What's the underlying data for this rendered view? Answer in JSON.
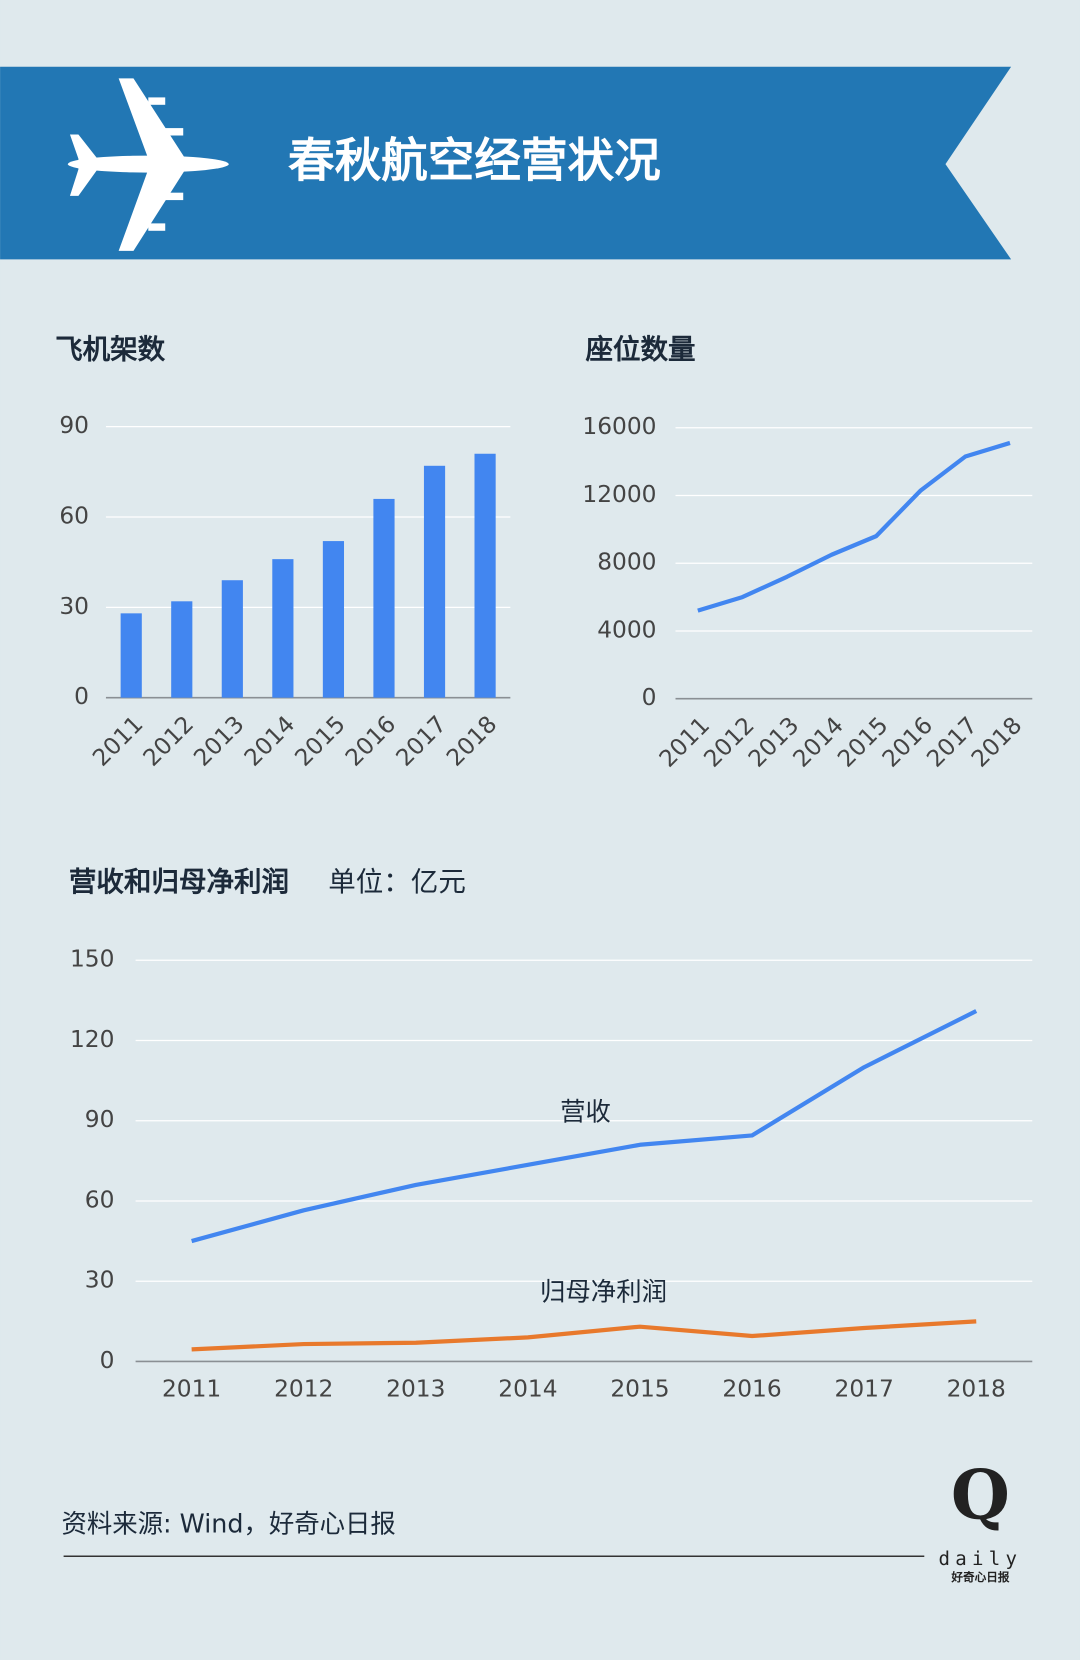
{
  "header": {
    "title": "春秋航空经营状况"
  },
  "chart_data": [
    {
      "type": "bar",
      "title": "飞机架数",
      "categories": [
        "2011",
        "2012",
        "2013",
        "2014",
        "2015",
        "2016",
        "2017",
        "2018"
      ],
      "values": [
        28,
        32,
        39,
        46,
        52,
        66,
        77,
        81
      ],
      "color": "#4286f0",
      "ylim": [
        0,
        90
      ],
      "yticks": [
        0,
        30,
        60,
        90
      ],
      "grid": true
    },
    {
      "type": "line",
      "title": "座位数量",
      "categories": [
        "2011",
        "2012",
        "2013",
        "2014",
        "2015",
        "2016",
        "2017",
        "2018"
      ],
      "values": [
        5200,
        6000,
        7200,
        8500,
        9600,
        12300,
        14300,
        15100
      ],
      "color": "#4286f0",
      "ylim": [
        0,
        16000
      ],
      "yticks": [
        0,
        4000,
        8000,
        12000,
        16000
      ],
      "grid": true
    },
    {
      "type": "line",
      "title": "营收和归母净利润",
      "subtitle": "单位：亿元",
      "categories": [
        "2011",
        "2012",
        "2013",
        "2014",
        "2015",
        "2016",
        "2017",
        "2018"
      ],
      "series": [
        {
          "name": "营收",
          "color": "#4286f0",
          "values": [
            45,
            56.5,
            66,
            73.5,
            81,
            84.5,
            110,
            131
          ]
        },
        {
          "name": "归母净利润",
          "color": "#e8792c",
          "values": [
            4.5,
            6.5,
            7,
            9,
            13,
            9.5,
            12.5,
            15
          ]
        }
      ],
      "ylim": [
        0,
        150
      ],
      "yticks": [
        0,
        30,
        60,
        90,
        120,
        150
      ],
      "grid": true
    }
  ],
  "footer": {
    "source": "资料来源: Wind，好奇心日报",
    "logo_mark": "Q",
    "logo_word": "daily",
    "logo_name": "好奇心日报"
  }
}
